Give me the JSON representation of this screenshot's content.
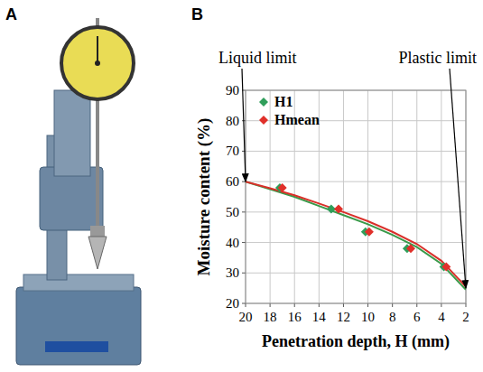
{
  "panel_labels": [
    "A",
    "B"
  ],
  "chart_data": {
    "type": "scatter",
    "x_label": "Penetration depth, H (mm)",
    "y_label": "Moisture content (%)",
    "xlim": [
      20,
      2
    ],
    "xticks": [
      20,
      18,
      16,
      14,
      12,
      10,
      8,
      6,
      4,
      2
    ],
    "ylim": [
      20,
      90
    ],
    "yticks": [
      20,
      30,
      40,
      50,
      60,
      70,
      80,
      90
    ],
    "grid": true,
    "legend": "upper left",
    "series": [
      {
        "name": "H1",
        "type": "scatter",
        "marker": "diamond",
        "color": "#2f9e5a",
        "x": [
          17.2,
          13.0,
          10.2,
          6.8,
          3.8
        ],
        "values": [
          58,
          51,
          43.5,
          38,
          32
        ]
      },
      {
        "name": "Hmean",
        "type": "scatter",
        "marker": "diamond",
        "color": "#e0302a",
        "x": [
          17.0,
          12.4,
          9.9,
          6.5,
          3.6
        ],
        "values": [
          58,
          51,
          43.5,
          38,
          32
        ]
      },
      {
        "type": "line",
        "line_style": "solid",
        "color": "#3a9a4a",
        "x": [
          20,
          18,
          16,
          14,
          12,
          10,
          8,
          6,
          4,
          2
        ],
        "values": [
          60,
          57.5,
          55,
          52,
          49,
          46,
          42.5,
          38.5,
          33,
          24.5
        ]
      },
      {
        "type": "line",
        "line_style": "solid",
        "color": "#d9302a",
        "x": [
          20,
          18,
          16,
          14,
          12,
          10,
          8,
          6,
          4,
          2
        ],
        "values": [
          60,
          57.8,
          55.5,
          52.8,
          50,
          47,
          43.5,
          39.5,
          34,
          25.5
        ]
      }
    ],
    "annotations": [
      {
        "text": "Liquid limit",
        "x": 20,
        "y": 60
      },
      {
        "text": "Plastic limit",
        "x": 2,
        "y": 25
      }
    ]
  }
}
